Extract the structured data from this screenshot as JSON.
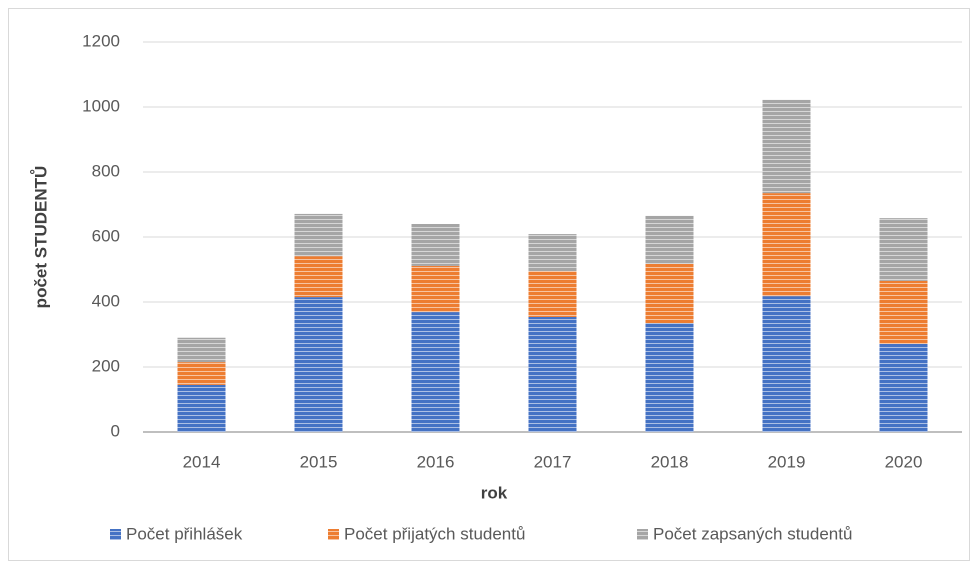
{
  "chart_data": {
    "type": "stacked-bar",
    "categories": [
      "2014",
      "2015",
      "2016",
      "2017",
      "2018",
      "2019",
      "2020"
    ],
    "series": [
      {
        "name": "Počet přihlášek",
        "color": "#4472c4",
        "values": [
          145,
          415,
          369,
          354,
          335,
          418,
          271
        ]
      },
      {
        "name": "Počet přijatých studentů",
        "color": "#ed7d31",
        "values": [
          70,
          126,
          142,
          141,
          182,
          317,
          194
        ]
      },
      {
        "name": "Počet zapsaných studentů",
        "color": "#a5a5a5",
        "values": [
          75,
          130,
          129,
          114,
          148,
          287,
          193
        ]
      }
    ],
    "xlabel": "rok",
    "ylabel": "počet STUDENTŮ",
    "ylim": [
      0,
      1200
    ],
    "yticks": [
      0,
      200,
      400,
      600,
      800,
      1000,
      1200
    ],
    "grid": true,
    "legend": "bottom"
  }
}
